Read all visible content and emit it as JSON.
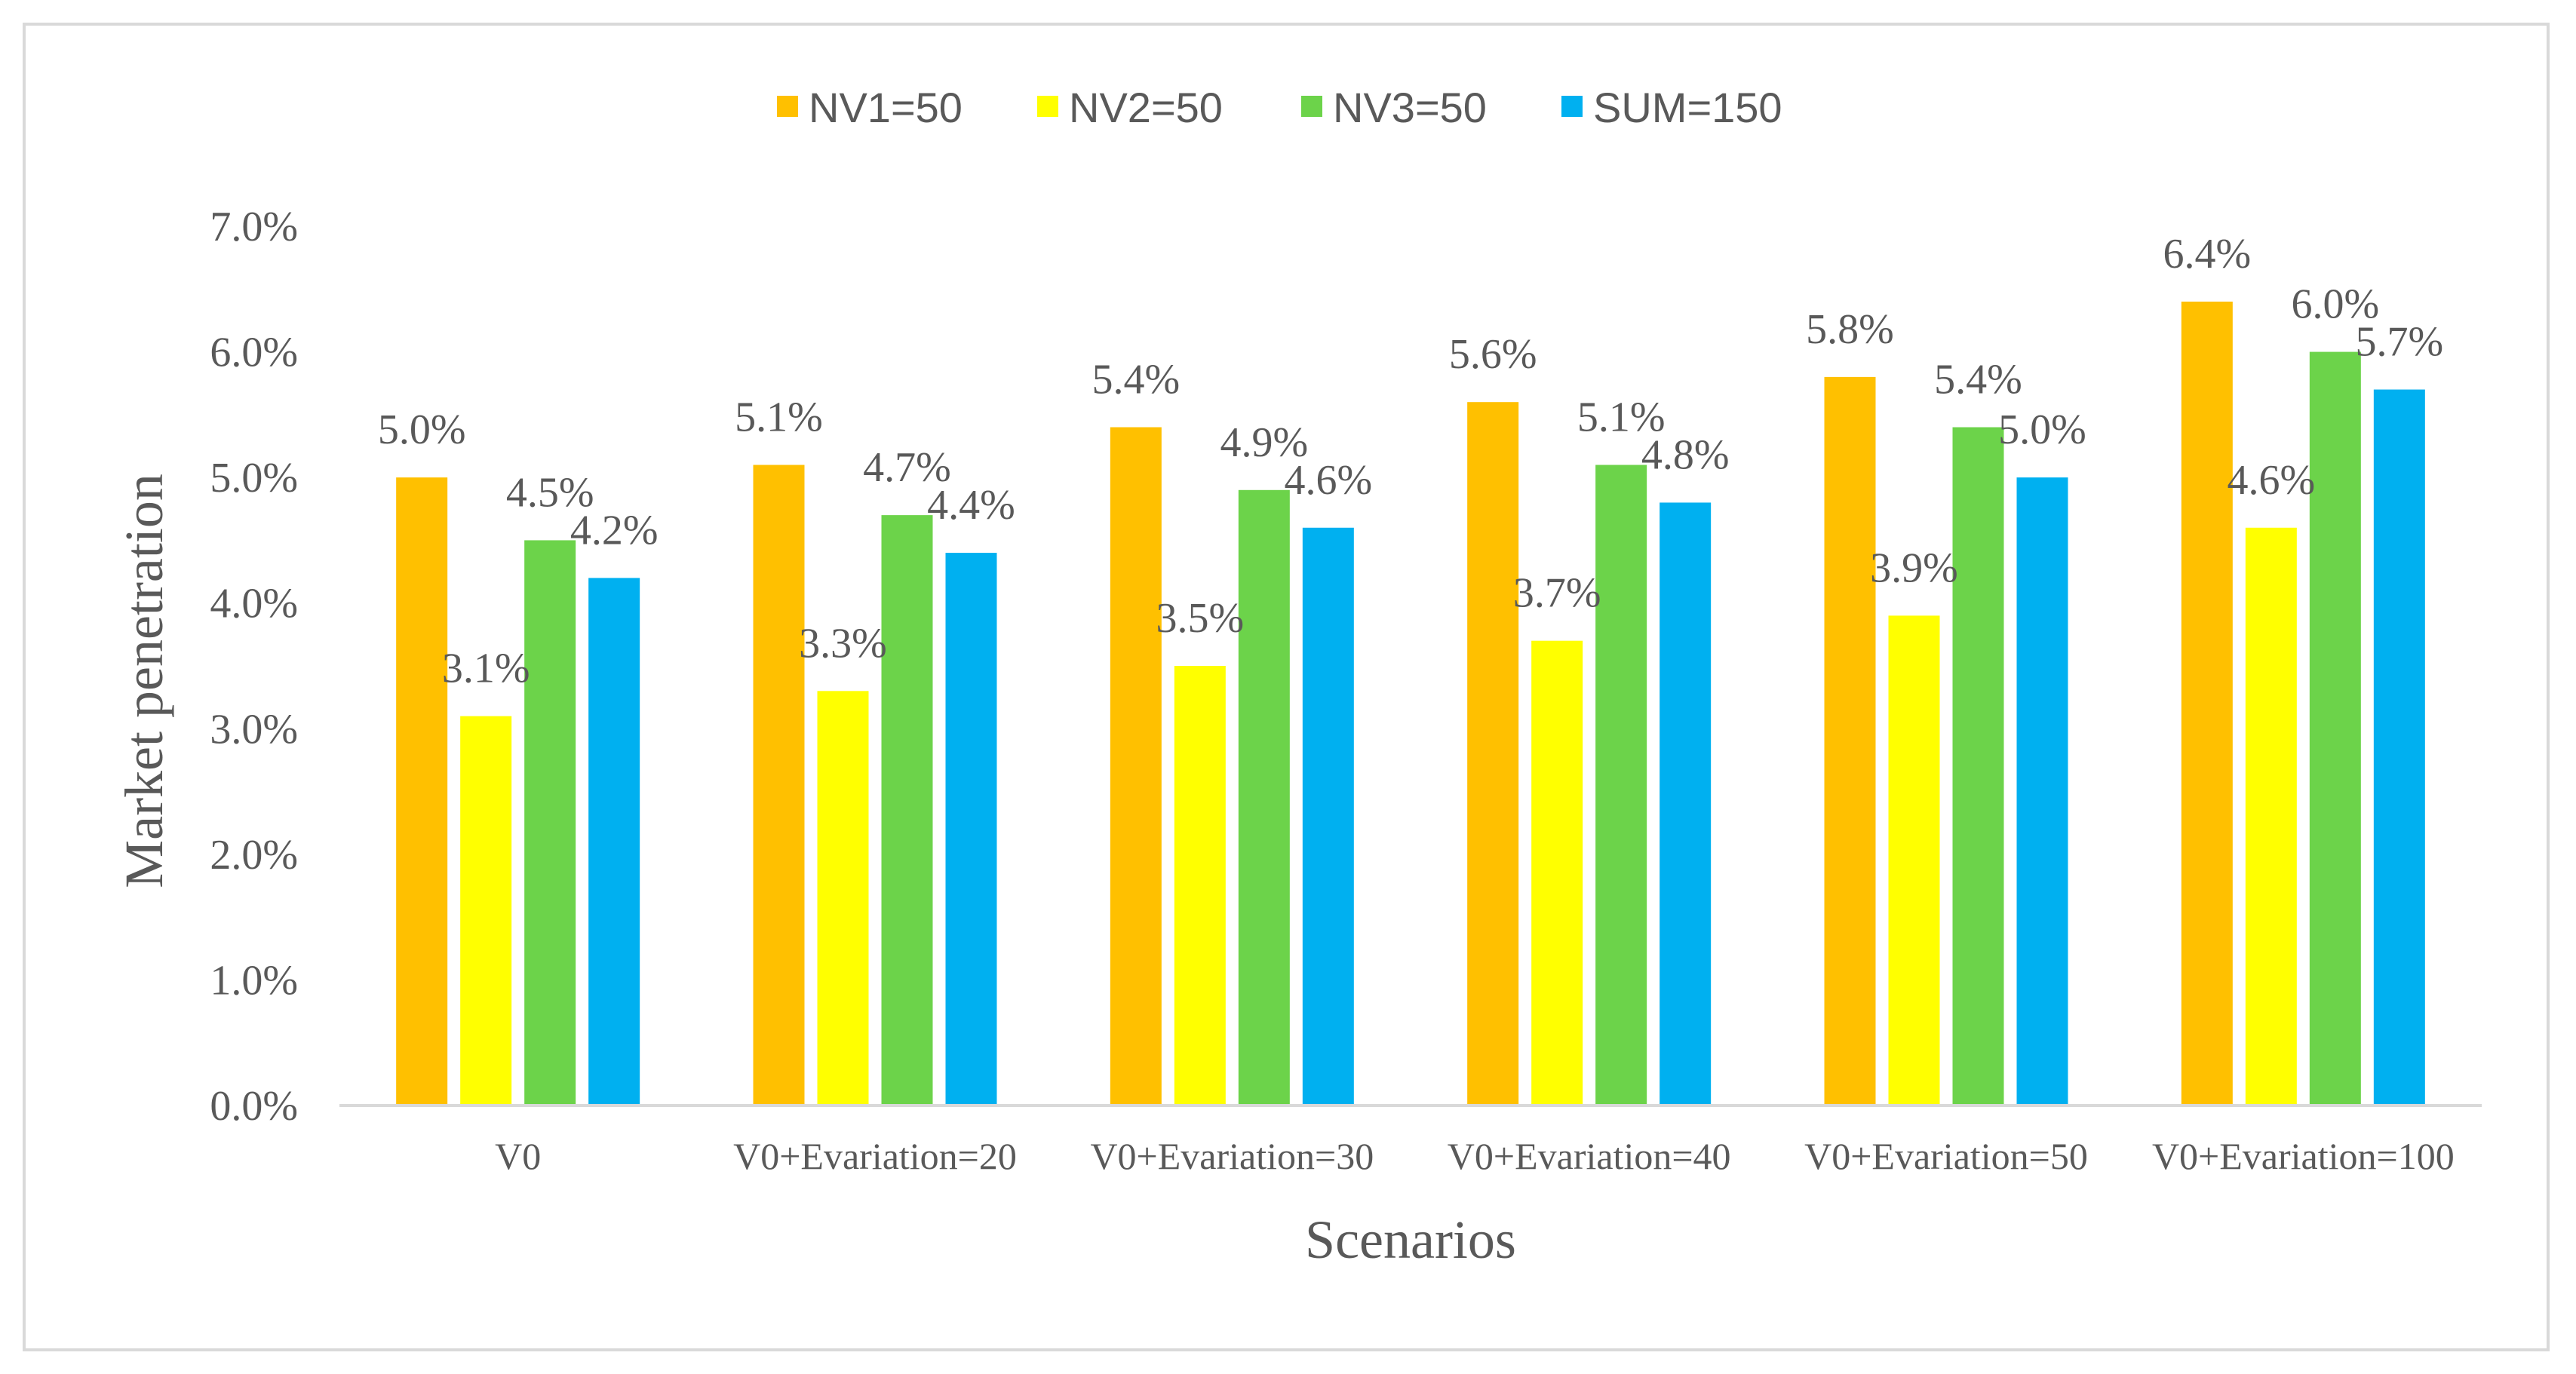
{
  "chart_data": {
    "type": "bar",
    "title": "",
    "xlabel": "Scenarios",
    "ylabel": "Market penetration",
    "ylim": [
      0,
      7
    ],
    "yticks": [
      "0.0%",
      "1.0%",
      "2.0%",
      "3.0%",
      "4.0%",
      "5.0%",
      "6.0%",
      "7.0%"
    ],
    "grid": false,
    "legend_position": "top",
    "categories": [
      "V0",
      "V0+Evariation=20",
      "V0+Evariation=30",
      "V0+Evariation=40",
      "V0+Evariation=50",
      "V0+Evariation=100"
    ],
    "series": [
      {
        "name": "NV1=50",
        "color": "#FFC000",
        "values": [
          5.0,
          5.1,
          5.4,
          5.6,
          5.8,
          6.4
        ],
        "labels": [
          "5.0%",
          "5.1%",
          "5.4%",
          "5.6%",
          "5.8%",
          "6.4%"
        ]
      },
      {
        "name": "NV2=50",
        "color": "#FFFF00",
        "values": [
          3.1,
          3.3,
          3.5,
          3.7,
          3.9,
          4.6
        ],
        "labels": [
          "3.1%",
          "3.3%",
          "3.5%",
          "3.7%",
          "3.9%",
          "4.6%"
        ]
      },
      {
        "name": "NV3=50",
        "color": "#6CD34A",
        "values": [
          4.5,
          4.7,
          4.9,
          5.1,
          5.4,
          6.0
        ],
        "labels": [
          "4.5%",
          "4.7%",
          "4.9%",
          "5.1%",
          "5.4%",
          "6.0%"
        ]
      },
      {
        "name": "SUM=150",
        "color": "#00B0F0",
        "values": [
          4.2,
          4.4,
          4.6,
          4.8,
          5.0,
          5.7
        ],
        "labels": [
          "4.2%",
          "4.4%",
          "4.6%",
          "4.8%",
          "5.0%",
          "5.7%"
        ]
      }
    ]
  }
}
